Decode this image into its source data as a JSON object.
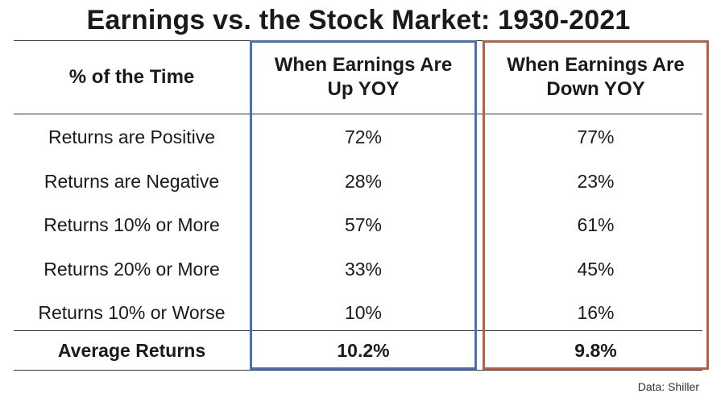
{
  "colors": {
    "up_column_border": "#4a6fb5",
    "down_column_border": "#b5614a",
    "rule": "#333333",
    "text": "#1a1a1a"
  },
  "chart_data": {
    "type": "table",
    "title": "Earnings vs. the Stock Market: 1930-2021",
    "columns": [
      "% of the Time",
      "When Earnings Are Up YOY",
      "When Earnings Are Down YOY"
    ],
    "rows": [
      {
        "label": "Returns are Positive",
        "up": "72%",
        "down": "77%"
      },
      {
        "label": "Returns are Negative",
        "up": "28%",
        "down": "23%"
      },
      {
        "label": "Returns 10% or More",
        "up": "57%",
        "down": "61%"
      },
      {
        "label": "Returns 20% or More",
        "up": "33%",
        "down": "45%"
      },
      {
        "label": "Returns 10% or Worse",
        "up": "10%",
        "down": "16%"
      }
    ],
    "summary": {
      "label": "Average Returns",
      "up": "10.2%",
      "down": "9.8%"
    },
    "source": "Data: Shiller"
  }
}
